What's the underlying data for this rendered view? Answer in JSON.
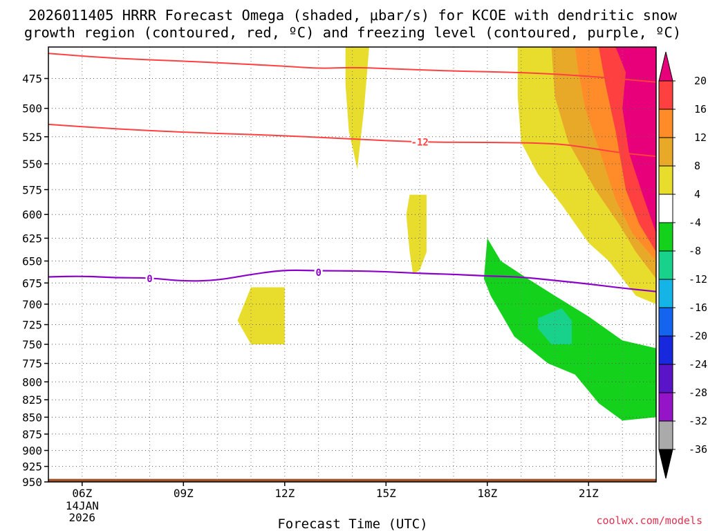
{
  "chart_data": {
    "type": "time-height cross section",
    "title_lines": [
      "2026011405 HRRR Forecast Omega (shaded, μbar/s) for KCOE with dendritic snow",
      "growth region (contoured, red, ºC) and freezing level (contoured, purple, ºC)"
    ],
    "xlabel": "Forecast Time (UTC)",
    "x_ticks": [
      {
        "label": "06Z",
        "hour": 6,
        "sub": [
          "14JAN",
          "2026"
        ]
      },
      {
        "label": "09Z",
        "hour": 9
      },
      {
        "label": "12Z",
        "hour": 12
      },
      {
        "label": "15Z",
        "hour": 15
      },
      {
        "label": "18Z",
        "hour": 18
      },
      {
        "label": "21Z",
        "hour": 21
      }
    ],
    "x_range": [
      5,
      23
    ],
    "y_ticks": [
      475,
      500,
      525,
      550,
      575,
      600,
      625,
      650,
      675,
      700,
      725,
      750,
      775,
      800,
      825,
      850,
      875,
      900,
      925,
      950
    ],
    "y_range": [
      450,
      950
    ],
    "y_scale": "log-pressure",
    "grid": "dotted",
    "colorbar": {
      "levels": [
        20,
        16,
        12,
        8,
        4,
        -4,
        -8,
        -12,
        -16,
        -20,
        -24,
        -28,
        -32,
        -36
      ],
      "colors": [
        "#e8007a",
        "#ff4040",
        "#ff8c28",
        "#e8a828",
        "#e8dc2c",
        "#ffffff",
        "#14d21c",
        "#18d28c",
        "#14b4e6",
        "#1464f0",
        "#1828dc",
        "#5a14c8",
        "#9614c8",
        "#aaaaaa"
      ],
      "top_arrow_color": "#e8007a",
      "bottom_arrow_color": "#000000"
    },
    "omega_regions": [
      {
        "color": "#e8dc2c",
        "points": [
          [
            13.8,
            450
          ],
          [
            14.5,
            450
          ],
          [
            14.35,
            500
          ],
          [
            14.15,
            555
          ],
          [
            13.9,
            520
          ],
          [
            13.8,
            480
          ]
        ]
      },
      {
        "color": "#e8dc2c",
        "points": [
          [
            15.7,
            580
          ],
          [
            16.2,
            580
          ],
          [
            16.2,
            640
          ],
          [
            16.0,
            660
          ],
          [
            15.8,
            665
          ],
          [
            15.7,
            640
          ],
          [
            15.6,
            600
          ]
        ]
      },
      {
        "color": "#e8dc2c",
        "points": [
          [
            11.0,
            680
          ],
          [
            12.0,
            680
          ],
          [
            12.0,
            750
          ],
          [
            11.0,
            750
          ],
          [
            10.6,
            720
          ]
        ]
      },
      {
        "color": "#e8dc2c",
        "points": [
          [
            18.9,
            450
          ],
          [
            23,
            450
          ],
          [
            23,
            700
          ],
          [
            22.4,
            690
          ],
          [
            21.6,
            650
          ],
          [
            21.0,
            630
          ],
          [
            20.2,
            590
          ],
          [
            19.5,
            560
          ],
          [
            19.0,
            530
          ],
          [
            18.9,
            490
          ]
        ]
      },
      {
        "color": "#e8a828",
        "points": [
          [
            19.9,
            450
          ],
          [
            23,
            450
          ],
          [
            23,
            670
          ],
          [
            22.4,
            640
          ],
          [
            21.9,
            610
          ],
          [
            21.2,
            575
          ],
          [
            20.4,
            530
          ],
          [
            20.0,
            490
          ]
        ]
      },
      {
        "color": "#ff8c28",
        "points": [
          [
            20.6,
            450
          ],
          [
            23,
            450
          ],
          [
            23,
            650
          ],
          [
            22.3,
            620
          ],
          [
            21.8,
            585
          ],
          [
            21.4,
            545
          ],
          [
            20.9,
            500
          ],
          [
            20.7,
            470
          ]
        ]
      },
      {
        "color": "#ff4040",
        "points": [
          [
            21.3,
            450
          ],
          [
            23,
            450
          ],
          [
            23,
            640
          ],
          [
            22.5,
            610
          ],
          [
            22.1,
            575
          ],
          [
            21.8,
            520
          ],
          [
            21.5,
            480
          ]
        ]
      },
      {
        "color": "#e8007a",
        "points": [
          [
            21.8,
            450
          ],
          [
            23,
            450
          ],
          [
            23,
            620
          ],
          [
            22.6,
            580
          ],
          [
            22.2,
            540
          ],
          [
            22.0,
            500
          ],
          [
            22.1,
            470
          ]
        ]
      },
      {
        "color": "#14d21c",
        "points": [
          [
            18.0,
            625
          ],
          [
            18.4,
            650
          ],
          [
            19.2,
            670
          ],
          [
            20.0,
            690
          ],
          [
            21.0,
            715
          ],
          [
            22.0,
            745
          ],
          [
            23,
            755
          ],
          [
            23,
            850
          ],
          [
            22.0,
            855
          ],
          [
            21.3,
            830
          ],
          [
            20.6,
            790
          ],
          [
            19.8,
            775
          ],
          [
            18.8,
            740
          ],
          [
            18.1,
            690
          ],
          [
            17.9,
            670
          ]
        ]
      },
      {
        "color": "#18d28c",
        "points": [
          [
            19.5,
            717
          ],
          [
            20.2,
            705
          ],
          [
            20.5,
            720
          ],
          [
            20.5,
            750
          ],
          [
            19.9,
            750
          ],
          [
            19.5,
            730
          ]
        ]
      }
    ],
    "dgz_contours": [
      {
        "color": "#ff4040",
        "label": "",
        "points": [
          [
            5,
            455
          ],
          [
            7,
            459
          ],
          [
            9,
            461
          ],
          [
            12,
            465
          ],
          [
            13,
            467
          ],
          [
            14,
            466
          ],
          [
            15,
            467
          ],
          [
            17,
            469
          ],
          [
            19,
            470
          ],
          [
            21,
            473
          ],
          [
            23,
            478
          ]
        ]
      },
      {
        "color": "#ff4040",
        "label": "-12",
        "label_at": [
          16.0,
          530
        ],
        "points": [
          [
            5,
            514
          ],
          [
            7,
            518
          ],
          [
            9,
            521
          ],
          [
            12,
            524
          ],
          [
            14,
            527
          ],
          [
            16,
            530
          ],
          [
            18,
            530
          ],
          [
            20,
            531
          ],
          [
            21,
            535
          ],
          [
            22,
            540
          ],
          [
            23,
            543
          ]
        ]
      }
    ],
    "freezing_contour": {
      "color": "#8b00c8",
      "labels": [
        {
          "text": "0",
          "x": 8.0,
          "p": 670
        },
        {
          "text": "0",
          "x": 13.0,
          "p": 663
        }
      ],
      "points": [
        [
          5,
          668
        ],
        [
          6,
          667
        ],
        [
          7,
          669
        ],
        [
          8,
          669
        ],
        [
          9,
          673
        ],
        [
          10,
          672
        ],
        [
          11,
          665
        ],
        [
          12,
          660
        ],
        [
          13,
          661
        ],
        [
          14,
          661
        ],
        [
          15,
          662
        ],
        [
          16,
          664
        ],
        [
          17,
          665
        ],
        [
          18,
          667
        ],
        [
          19,
          668
        ],
        [
          20,
          672
        ],
        [
          21,
          676
        ],
        [
          22,
          681
        ],
        [
          23,
          685
        ]
      ]
    },
    "ground": {
      "color": "#a0522d",
      "points": [
        [
          5,
          945
        ],
        [
          23,
          945
        ],
        [
          23,
          955
        ],
        [
          5,
          955
        ]
      ]
    }
  },
  "credit": "coolwx.com/models"
}
